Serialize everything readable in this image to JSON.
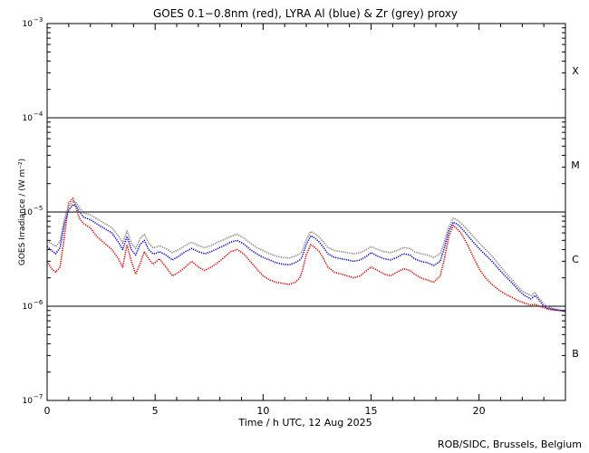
{
  "chart_data": {
    "type": "line",
    "title": "GOES 0.1−0.8nm (red), LYRA Al (blue) & Zr (grey) proxy",
    "xlabel": "Time / h UTC, 12 Aug 2025",
    "ylabel": "GOES Irradiance / (W m⁻²)",
    "credit": "ROB/SIDC, Brussels, Belgium",
    "xlim": [
      0,
      24
    ],
    "ylim": [
      1e-07,
      0.001
    ],
    "yscale": "log",
    "x_ticks": [
      0,
      5,
      10,
      15,
      20
    ],
    "y_ticks": [
      {
        "value": 1e-07,
        "label": "10",
        "exp": "−7"
      },
      {
        "value": 1e-06,
        "label": "10",
        "exp": "−6"
      },
      {
        "value": 1e-05,
        "label": "10",
        "exp": "−5"
      },
      {
        "value": 0.0001,
        "label": "10",
        "exp": "−4"
      },
      {
        "value": 0.001,
        "label": "10",
        "exp": "−3"
      }
    ],
    "flare_levels": [
      1e-06,
      1e-05,
      0.0001
    ],
    "flare_classes": [
      {
        "label": "B",
        "log_center": -6.5
      },
      {
        "label": "C",
        "log_center": -5.5
      },
      {
        "label": "M",
        "log_center": -4.5
      },
      {
        "label": "X",
        "log_center": -3.5
      }
    ],
    "series": [
      {
        "name": "GOES 0.1-0.8nm",
        "color": "#d40000",
        "x": [
          0,
          0.2,
          0.4,
          0.6,
          0.8,
          1.0,
          1.2,
          1.35,
          1.5,
          1.7,
          2.0,
          2.3,
          2.6,
          3.0,
          3.3,
          3.5,
          3.7,
          3.9,
          4.1,
          4.3,
          4.5,
          4.7,
          4.9,
          5.0,
          5.2,
          5.5,
          5.8,
          6.1,
          6.4,
          6.7,
          7.0,
          7.3,
          7.6,
          7.9,
          8.2,
          8.5,
          8.8,
          9.1,
          9.4,
          9.7,
          10.0,
          10.3,
          10.6,
          10.9,
          11.2,
          11.5,
          11.7,
          11.8,
          12.0,
          12.2,
          12.4,
          12.6,
          12.8,
          13.0,
          13.3,
          13.6,
          13.9,
          14.2,
          14.5,
          14.8,
          15.0,
          15.3,
          15.6,
          15.9,
          16.2,
          16.5,
          16.8,
          17.0,
          17.3,
          17.6,
          17.9,
          18.2,
          18.4,
          18.6,
          18.8,
          19.0,
          19.2,
          19.4,
          19.6,
          19.8,
          20.0,
          20.3,
          20.6,
          20.9,
          21.2,
          21.5,
          21.8,
          22.1,
          22.4,
          22.6,
          22.8,
          23.0,
          23.2,
          23.5,
          23.8,
          24.0
        ],
        "y": [
          3e-06,
          2.5e-06,
          2.3e-06,
          2.6e-06,
          5.5e-06,
          1.25e-05,
          1.4e-05,
          1.1e-05,
          8.5e-06,
          7.5e-06,
          6.8e-06,
          5.5e-06,
          4.8e-06,
          4e-06,
          3.2e-06,
          2.6e-06,
          4.5e-06,
          3e-06,
          2.2e-06,
          2.8e-06,
          3.8e-06,
          3.2e-06,
          2.8e-06,
          2.9e-06,
          3.2e-06,
          2.6e-06,
          2.1e-06,
          2.3e-06,
          2.6e-06,
          3e-06,
          2.6e-06,
          2.4e-06,
          2.6e-06,
          2.9e-06,
          3.3e-06,
          3.8e-06,
          4e-06,
          3.6e-06,
          3e-06,
          2.5e-06,
          2.1e-06,
          1.9e-06,
          1.8e-06,
          1.75e-06,
          1.7e-06,
          1.8e-06,
          2e-06,
          2.3e-06,
          3.5e-06,
          4.5e-06,
          4.2e-06,
          3.8e-06,
          3.2e-06,
          2.6e-06,
          2.3e-06,
          2.2e-06,
          2.1e-06,
          2e-06,
          2.1e-06,
          2.4e-06,
          2.6e-06,
          2.4e-06,
          2.2e-06,
          2.1e-06,
          2.3e-06,
          2.5e-06,
          2.4e-06,
          2.2e-06,
          2e-06,
          1.9e-06,
          1.8e-06,
          2.1e-06,
          3.2e-06,
          5.5e-06,
          7.2e-06,
          6.6e-06,
          5.8e-06,
          4.8e-06,
          3.9e-06,
          3.1e-06,
          2.5e-06,
          2e-06,
          1.7e-06,
          1.5e-06,
          1.35e-06,
          1.25e-06,
          1.15e-06,
          1.08e-06,
          1.03e-06,
          1.05e-06,
          1e-06,
          9.6e-07,
          9.3e-07,
          9.1e-07,
          9e-07,
          8.9e-07
        ]
      },
      {
        "name": "LYRA Al proxy",
        "color": "#0000cc",
        "x": [
          0,
          0.2,
          0.4,
          0.6,
          0.8,
          1.0,
          1.2,
          1.35,
          1.5,
          1.7,
          2.0,
          2.3,
          2.6,
          3.0,
          3.3,
          3.5,
          3.7,
          3.9,
          4.1,
          4.3,
          4.5,
          4.7,
          4.9,
          5.0,
          5.2,
          5.5,
          5.8,
          6.1,
          6.4,
          6.7,
          7.0,
          7.3,
          7.6,
          7.9,
          8.2,
          8.5,
          8.8,
          9.1,
          9.4,
          9.7,
          10.0,
          10.3,
          10.6,
          10.9,
          11.2,
          11.5,
          11.7,
          11.8,
          12.0,
          12.2,
          12.4,
          12.6,
          12.8,
          13.0,
          13.3,
          13.6,
          13.9,
          14.2,
          14.5,
          14.8,
          15.0,
          15.3,
          15.6,
          15.9,
          16.2,
          16.5,
          16.8,
          17.0,
          17.3,
          17.6,
          17.9,
          18.2,
          18.4,
          18.6,
          18.8,
          19.0,
          19.2,
          19.4,
          19.6,
          19.8,
          20.0,
          20.3,
          20.6,
          20.9,
          21.2,
          21.5,
          21.8,
          22.1,
          22.4,
          22.6,
          22.8,
          23.0,
          23.2,
          23.5,
          23.8,
          24.0
        ],
        "y": [
          4.3e-06,
          3.9e-06,
          3.6e-06,
          4.2e-06,
          7.5e-06,
          1.05e-05,
          1.2e-05,
          1.15e-05,
          1e-05,
          8.8e-06,
          8.3e-06,
          7.5e-06,
          6.8e-06,
          6e-06,
          4.8e-06,
          4e-06,
          5.5e-06,
          4e-06,
          3.5e-06,
          4.5e-06,
          5e-06,
          4e-06,
          3.6e-06,
          3.6e-06,
          3.8e-06,
          3.5e-06,
          3.1e-06,
          3.4e-06,
          3.8e-06,
          4.1e-06,
          3.8e-06,
          3.6e-06,
          3.8e-06,
          4.1e-06,
          4.4e-06,
          4.8e-06,
          5e-06,
          4.6e-06,
          4e-06,
          3.6e-06,
          3.3e-06,
          3.1e-06,
          2.9e-06,
          2.8e-06,
          2.75e-06,
          2.9e-06,
          3.1e-06,
          3.3e-06,
          4.5e-06,
          5.6e-06,
          5.3e-06,
          4.8e-06,
          4.2e-06,
          3.6e-06,
          3.3e-06,
          3.2e-06,
          3.1e-06,
          3e-06,
          3.1e-06,
          3.4e-06,
          3.7e-06,
          3.4e-06,
          3.2e-06,
          3.1e-06,
          3.3e-06,
          3.6e-06,
          3.5e-06,
          3.2e-06,
          3e-06,
          2.9e-06,
          2.7e-06,
          3e-06,
          4.2e-06,
          6.3e-06,
          7.8e-06,
          7.4e-06,
          6.7e-06,
          5.9e-06,
          5.2e-06,
          4.6e-06,
          4.1e-06,
          3.5e-06,
          3e-06,
          2.5e-06,
          2.1e-06,
          1.8e-06,
          1.5e-06,
          1.3e-06,
          1.2e-06,
          1.3e-06,
          1.15e-06,
          1e-06,
          9.5e-07,
          9.2e-07,
          9e-07,
          8.8e-07
        ]
      },
      {
        "name": "LYRA Zr proxy",
        "color": "#808080",
        "x": [
          0,
          0.2,
          0.4,
          0.6,
          0.8,
          1.0,
          1.2,
          1.35,
          1.5,
          1.7,
          2.0,
          2.3,
          2.6,
          3.0,
          3.3,
          3.5,
          3.7,
          3.9,
          4.1,
          4.3,
          4.5,
          4.7,
          4.9,
          5.0,
          5.2,
          5.5,
          5.8,
          6.1,
          6.4,
          6.7,
          7.0,
          7.3,
          7.6,
          7.9,
          8.2,
          8.5,
          8.8,
          9.1,
          9.4,
          9.7,
          10.0,
          10.3,
          10.6,
          10.9,
          11.2,
          11.5,
          11.7,
          11.8,
          12.0,
          12.2,
          12.4,
          12.6,
          12.8,
          13.0,
          13.3,
          13.6,
          13.9,
          14.2,
          14.5,
          14.8,
          15.0,
          15.3,
          15.6,
          15.9,
          16.2,
          16.5,
          16.8,
          17.0,
          17.3,
          17.6,
          17.9,
          18.2,
          18.4,
          18.6,
          18.8,
          19.0,
          19.2,
          19.4,
          19.6,
          19.8,
          20.0,
          20.3,
          20.6,
          20.9,
          21.2,
          21.5,
          21.8,
          22.1,
          22.4,
          22.6,
          22.8,
          23.0,
          23.2,
          23.5,
          23.8,
          24.0
        ],
        "y": [
          5e-06,
          4.6e-06,
          4.3e-06,
          4.9e-06,
          8.5e-06,
          1.15e-05,
          1.3e-05,
          1.25e-05,
          1.1e-05,
          9.8e-06,
          9.3e-06,
          8.5e-06,
          7.7e-06,
          6.8e-06,
          5.6e-06,
          4.7e-06,
          6.3e-06,
          4.7e-06,
          4.1e-06,
          5.2e-06,
          5.8e-06,
          4.7e-06,
          4.2e-06,
          4.2e-06,
          4.4e-06,
          4.1e-06,
          3.7e-06,
          4e-06,
          4.4e-06,
          4.8e-06,
          4.4e-06,
          4.2e-06,
          4.4e-06,
          4.8e-06,
          5.1e-06,
          5.5e-06,
          5.8e-06,
          5.3e-06,
          4.7e-06,
          4.2e-06,
          3.9e-06,
          3.6e-06,
          3.4e-06,
          3.3e-06,
          3.25e-06,
          3.4e-06,
          3.6e-06,
          3.8e-06,
          5.1e-06,
          6.2e-06,
          5.9e-06,
          5.4e-06,
          4.8e-06,
          4.2e-06,
          3.9e-06,
          3.8e-06,
          3.7e-06,
          3.6e-06,
          3.7e-06,
          4e-06,
          4.3e-06,
          4e-06,
          3.8e-06,
          3.7e-06,
          3.9e-06,
          4.2e-06,
          4.1e-06,
          3.8e-06,
          3.6e-06,
          3.5e-06,
          3.3e-06,
          3.6e-06,
          4.9e-06,
          7e-06,
          8.6e-06,
          8.2e-06,
          7.5e-06,
          6.7e-06,
          5.9e-06,
          5.3e-06,
          4.7e-06,
          4e-06,
          3.4e-06,
          2.8e-06,
          2.3e-06,
          1.95e-06,
          1.6e-06,
          1.4e-06,
          1.3e-06,
          1.4e-06,
          1.2e-06,
          1.05e-06,
          9.8e-07,
          9.4e-07,
          9.1e-07,
          8.9e-07
        ]
      }
    ]
  }
}
